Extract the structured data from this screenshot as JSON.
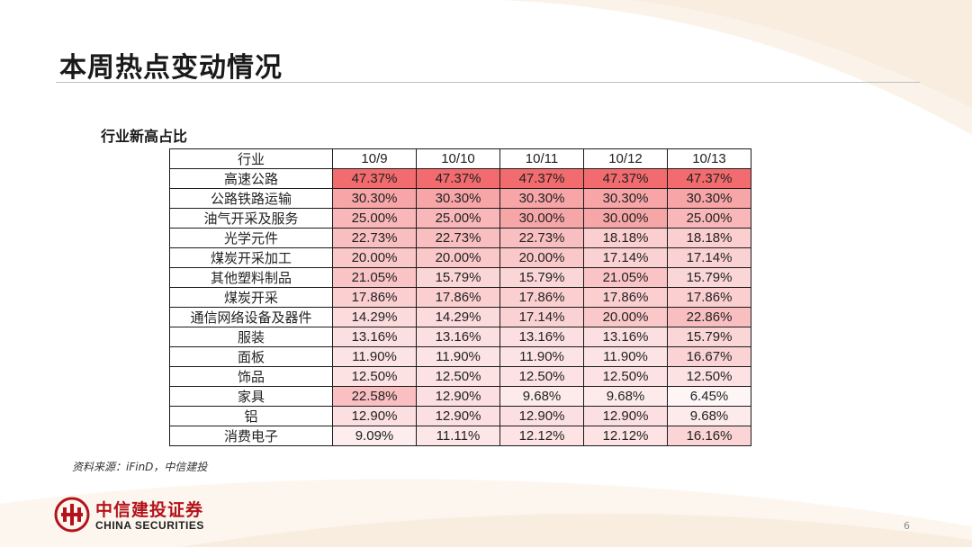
{
  "page": {
    "title": "本周热点变动情况",
    "subtitle": "行业新高占比",
    "source": "资料来源：iFinD，中信建投",
    "page_number": "6"
  },
  "logo": {
    "cn": "中信建投证券",
    "en": "CHINA SECURITIES"
  },
  "colors": {
    "heat_max": "#f26b6e",
    "heat_min": "#ffffff",
    "logo_red": "#b3131b"
  },
  "table": {
    "header": [
      "行业",
      "10/9",
      "10/10",
      "10/11",
      "10/12",
      "10/13"
    ],
    "rows": [
      {
        "industry": "高速公路",
        "values": [
          "47.37%",
          "47.37%",
          "47.37%",
          "47.37%",
          "47.37%"
        ]
      },
      {
        "industry": "公路铁路运输",
        "values": [
          "30.30%",
          "30.30%",
          "30.30%",
          "30.30%",
          "30.30%"
        ]
      },
      {
        "industry": "油气开采及服务",
        "values": [
          "25.00%",
          "25.00%",
          "30.00%",
          "30.00%",
          "25.00%"
        ]
      },
      {
        "industry": "光学元件",
        "values": [
          "22.73%",
          "22.73%",
          "22.73%",
          "18.18%",
          "18.18%"
        ]
      },
      {
        "industry": "煤炭开采加工",
        "values": [
          "20.00%",
          "20.00%",
          "20.00%",
          "17.14%",
          "17.14%"
        ]
      },
      {
        "industry": "其他塑料制品",
        "values": [
          "21.05%",
          "15.79%",
          "15.79%",
          "21.05%",
          "15.79%"
        ]
      },
      {
        "industry": "煤炭开采",
        "values": [
          "17.86%",
          "17.86%",
          "17.86%",
          "17.86%",
          "17.86%"
        ]
      },
      {
        "industry": "通信网络设备及器件",
        "values": [
          "14.29%",
          "14.29%",
          "17.14%",
          "20.00%",
          "22.86%"
        ]
      },
      {
        "industry": "服装",
        "values": [
          "13.16%",
          "13.16%",
          "13.16%",
          "13.16%",
          "15.79%"
        ]
      },
      {
        "industry": "面板",
        "values": [
          "11.90%",
          "11.90%",
          "11.90%",
          "11.90%",
          "16.67%"
        ]
      },
      {
        "industry": "饰品",
        "values": [
          "12.50%",
          "12.50%",
          "12.50%",
          "12.50%",
          "12.50%"
        ]
      },
      {
        "industry": "家具",
        "values": [
          "22.58%",
          "12.90%",
          "9.68%",
          "9.68%",
          "6.45%"
        ]
      },
      {
        "industry": "铝",
        "values": [
          "12.90%",
          "12.90%",
          "12.90%",
          "12.90%",
          "9.68%"
        ]
      },
      {
        "industry": "消费电子",
        "values": [
          "9.09%",
          "11.11%",
          "12.12%",
          "12.12%",
          "16.16%"
        ]
      }
    ]
  }
}
